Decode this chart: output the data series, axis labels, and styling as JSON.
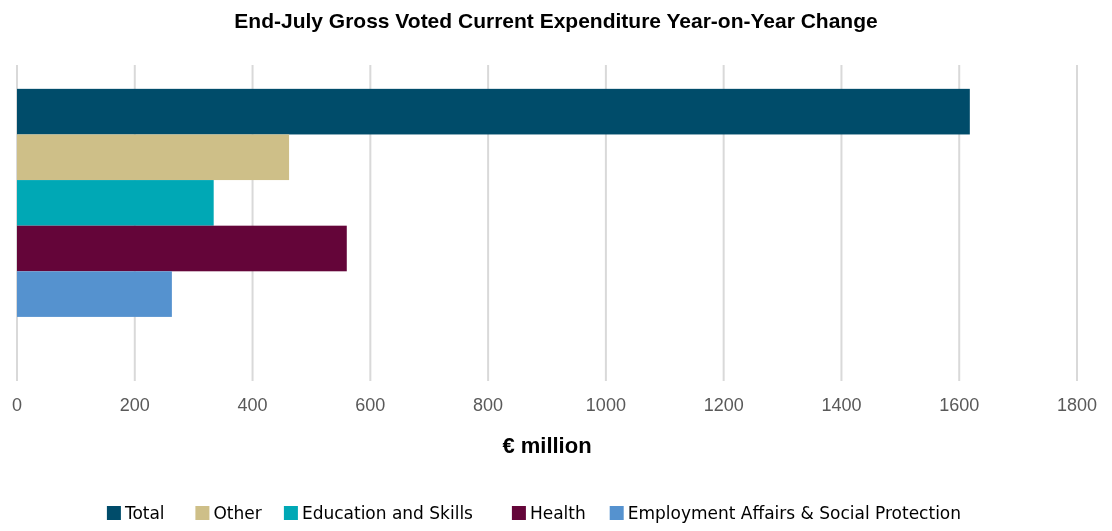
{
  "chart_data": {
    "type": "bar",
    "orientation": "horizontal",
    "title": "End-July Gross Voted Current Expenditure Year-on-Year Change",
    "xlabel": "€ million",
    "categories": [
      null
    ],
    "series": [
      {
        "name": "Total",
        "color": "#004c6a",
        "values": [
          1618
        ]
      },
      {
        "name": "Other",
        "color": "#cebf88",
        "values": [
          462
        ]
      },
      {
        "name": "Education and Skills",
        "color": "#00a8b5",
        "values": [
          334
        ]
      },
      {
        "name": "Health",
        "color": "#640539",
        "values": [
          560
        ]
      },
      {
        "name": "Employment Affairs & Social Protection",
        "color": "#5592cf",
        "values": [
          263
        ]
      }
    ],
    "xlim": [
      0,
      1800
    ],
    "xticks": [
      0,
      200,
      400,
      600,
      800,
      1000,
      1200,
      1400,
      1600,
      1800
    ],
    "grid": "x",
    "legend": "bottom"
  }
}
